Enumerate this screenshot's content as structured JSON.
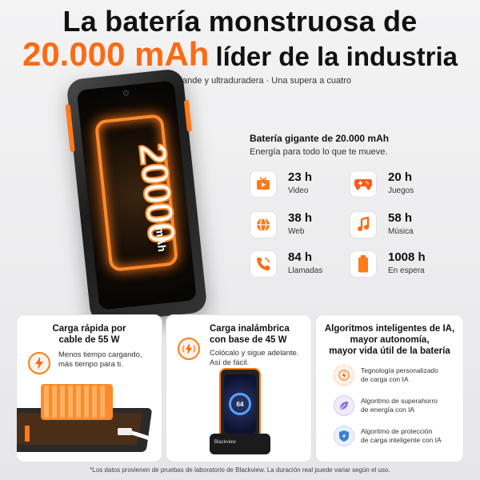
{
  "header": {
    "title_line1": "La batería monstruosa de",
    "capacity": "20.000 mAh",
    "title_rest": "líder de la industria",
    "subtitle": "Ultragrande y ultraduradera · Una supera a cuatro"
  },
  "phone": {
    "screen_number": "20000",
    "screen_unit": "mAh"
  },
  "battery": {
    "title": "Batería gigante de 20.000 mAh",
    "subtitle": "Energía para todo lo que te mueve.",
    "stats": [
      {
        "value": "23 h",
        "label": "Video",
        "icon": "video-icon"
      },
      {
        "value": "20 h",
        "label": "Juegos",
        "icon": "gamepad-icon"
      },
      {
        "value": "38 h",
        "label": "Web",
        "icon": "globe-icon"
      },
      {
        "value": "58 h",
        "label": "Música",
        "icon": "music-icon"
      },
      {
        "value": "84 h",
        "label": "Llamadas",
        "icon": "phone-call-icon"
      },
      {
        "value": "1008 h",
        "label": "En espera",
        "icon": "battery-icon"
      }
    ]
  },
  "panels": {
    "fast_charge": {
      "title_l1": "Carga rápida por",
      "title_l2": "cable de 55 W",
      "desc_l1": "Menos tiempo cargando,",
      "desc_l2": "más tiempo para ti."
    },
    "wireless": {
      "title_l1": "Carga inalámbrica",
      "title_l2": "con base de 45 W",
      "desc_l1": "Colócalo y sigue adelante.",
      "desc_l2": "Así de fácil.",
      "screen_pct": "64",
      "brand": "Blackview"
    },
    "ai": {
      "title_l1": "Algoritmos inteligentes de IA,",
      "title_l2": "mayor autonomía,",
      "title_l3": "mayor vida útil de la batería",
      "items": [
        {
          "l1": "Tegnología personalizado",
          "l2": "de carga con IA"
        },
        {
          "l1": "Algoritmo de superahorro",
          "l2": "de energía con IA"
        },
        {
          "l1": "Algoritmo de protección",
          "l2": "de carga inteligente con IA"
        }
      ]
    }
  },
  "footnote": "*Los datos provienen de pruebas de laboratorio de Blackview. La duración real puede variar según el uso.",
  "colors": {
    "accent": "#ff6a13",
    "text": "#111111"
  }
}
